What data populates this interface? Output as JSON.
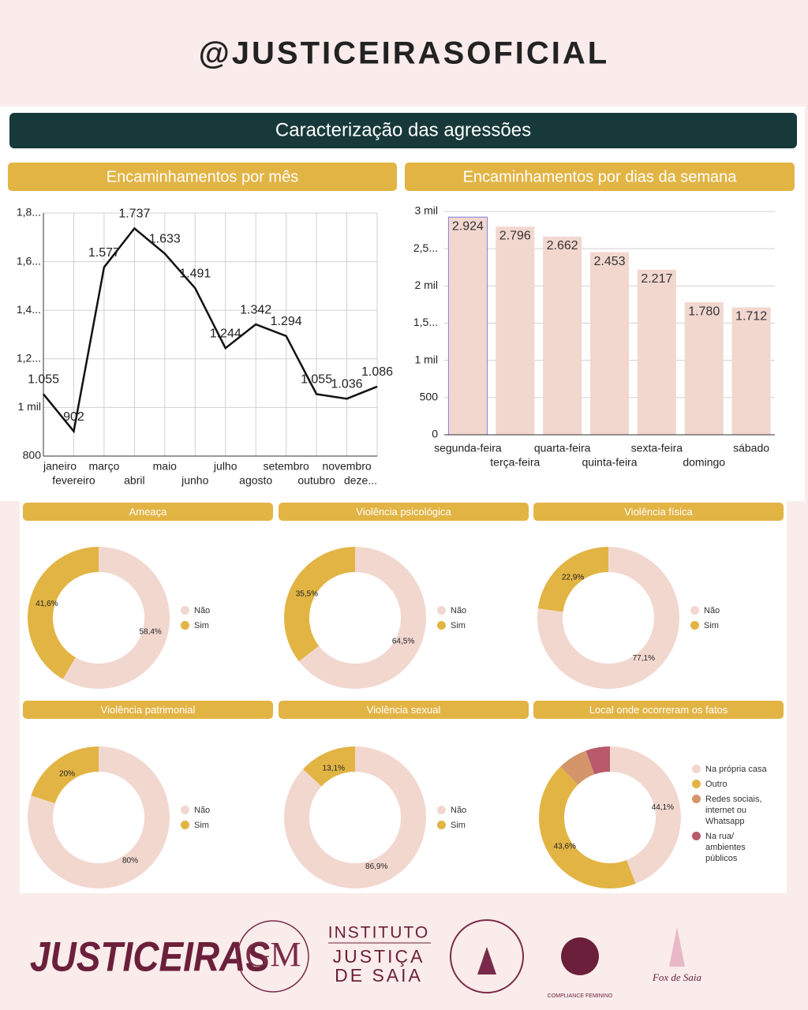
{
  "header": "@JUSTICEIRASOFICIAL",
  "section_title": "Caracterização das agressões",
  "chart_data": [
    {
      "type": "line",
      "title": "Encaminhamentos por mês",
      "categories": [
        "janeiro",
        "fevereiro",
        "março",
        "abril",
        "maio",
        "junho",
        "julho",
        "agosto",
        "setembro",
        "outubro",
        "novembro",
        "deze..."
      ],
      "series": [
        {
          "name": "Encaminhamentos",
          "color": "#111111",
          "values": [
            1055,
            902,
            1577,
            1737,
            1633,
            1491,
            1244,
            1342,
            1294,
            1055,
            1036,
            1086
          ],
          "value_labels": [
            "1.055",
            "902",
            "1.577",
            "1.737",
            "1.633",
            "1.491",
            "1.244",
            "1.342",
            "1.294",
            "1.055",
            "1.036",
            "1.086"
          ]
        }
      ],
      "ylim": [
        800,
        1800
      ],
      "yticks": [
        800,
        {
          "value": 1000,
          "label": "1 mil"
        },
        {
          "value": 1200,
          "label": "1,2..."
        },
        {
          "value": 1400,
          "label": "1,4..."
        },
        {
          "value": 1600,
          "label": "1,6..."
        },
        {
          "value": 1800,
          "label": "1,8..."
        }
      ],
      "grid": true
    },
    {
      "type": "bar",
      "title": "Encaminhamentos por dias da semana",
      "categories": [
        "segunda-feira",
        "terça-feira",
        "quarta-feira",
        "quinta-feira",
        "sexta-feira",
        "domingo",
        "sábado"
      ],
      "values": [
        2924,
        2796,
        2662,
        2453,
        2217,
        1780,
        1712
      ],
      "value_labels": [
        "2.924",
        "2.796",
        "2.662",
        "2.453",
        "2.217",
        "1.780",
        "1.712"
      ],
      "color": "#f2d7cf",
      "ylim": [
        0,
        3000
      ],
      "yticks": [
        0,
        500,
        {
          "value": 1000,
          "label": "1 mil"
        },
        {
          "value": 1500,
          "label": "1,5..."
        },
        {
          "value": 2000,
          "label": "2 mil"
        },
        {
          "value": 2500,
          "label": "2,5..."
        },
        {
          "value": 3000,
          "label": "3 mil"
        }
      ],
      "grid": true
    },
    {
      "type": "pie",
      "donut": true,
      "title": "Ameaça",
      "categories": [
        "Não",
        "Sim"
      ],
      "values": [
        58.4,
        41.6
      ],
      "value_labels": [
        "58,4%",
        "41,6%"
      ],
      "colors": [
        "#f2d7cf",
        "#e2b444"
      ]
    },
    {
      "type": "pie",
      "donut": true,
      "title": "Violência psicológica",
      "categories": [
        "Não",
        "Sim"
      ],
      "values": [
        64.5,
        35.5
      ],
      "value_labels": [
        "64,5%",
        "35,5%"
      ],
      "colors": [
        "#f2d7cf",
        "#e2b444"
      ]
    },
    {
      "type": "pie",
      "donut": true,
      "title": "Violência física",
      "categories": [
        "Não",
        "Sim"
      ],
      "values": [
        77.1,
        22.9
      ],
      "value_labels": [
        "77,1%",
        "22,9%"
      ],
      "colors": [
        "#f2d7cf",
        "#e2b444"
      ]
    },
    {
      "type": "pie",
      "donut": true,
      "title": "Violência patrimonial",
      "categories": [
        "Não",
        "Sim"
      ],
      "values": [
        80,
        20
      ],
      "value_labels": [
        "80%",
        "20%"
      ],
      "colors": [
        "#f2d7cf",
        "#e2b444"
      ]
    },
    {
      "type": "pie",
      "donut": true,
      "title": "Violência sexual",
      "categories": [
        "Não",
        "Sim"
      ],
      "values": [
        86.9,
        13.1
      ],
      "value_labels": [
        "86,9%",
        "13,1%"
      ],
      "colors": [
        "#f2d7cf",
        "#e2b444"
      ]
    },
    {
      "type": "pie",
      "donut": true,
      "title": "Local onde ocorreram os fatos",
      "categories": [
        "Na própria casa",
        "Outro",
        "Redes sociais, internet ou Whatsapp",
        "Na rua/ ambientes públicos"
      ],
      "values": [
        44.1,
        43.6,
        6.8,
        5.5
      ],
      "value_labels": [
        "44,1%",
        "43,6%",
        null,
        null
      ],
      "colors": [
        "#f2d7cf",
        "#e2b444",
        "#d4956b",
        "#b85a6a"
      ]
    }
  ],
  "footer": {
    "logos": [
      "JUSTICEIRAS",
      "INSTITUTO",
      "JUSTIÇA",
      "DE SAIA",
      "COMPLIANCE FEMININO",
      "Fox de Saia"
    ]
  }
}
